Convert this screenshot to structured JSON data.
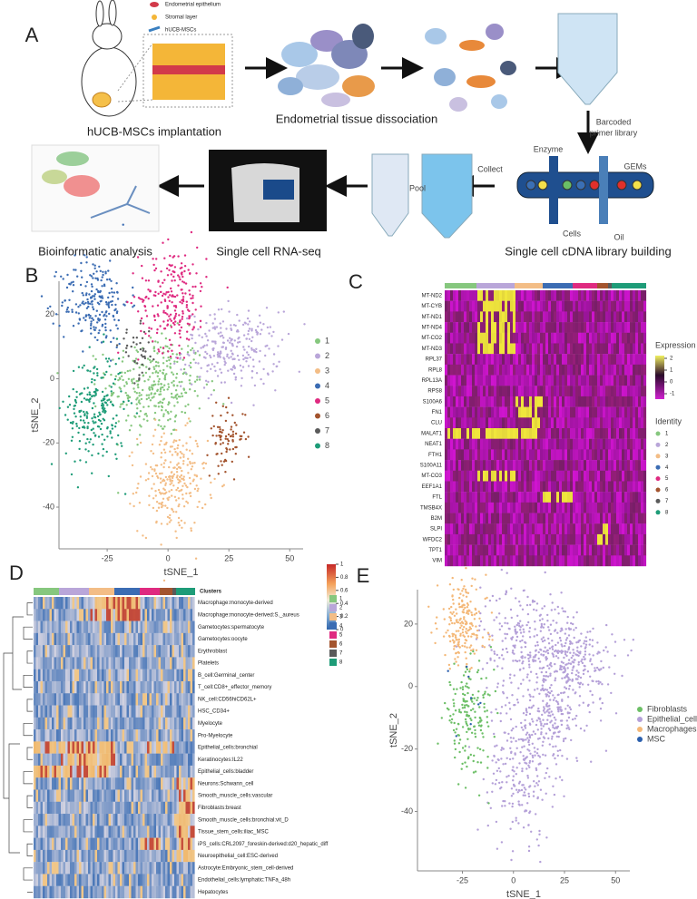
{
  "panel_labels": [
    "A",
    "B",
    "C",
    "D",
    "E"
  ],
  "panel_a": {
    "legend": [
      "Endometrial epithelium",
      "Stromal layer",
      "hUCB-MSCs"
    ],
    "implantation": "hUCB-MSCs implantation",
    "dissociation": "Endometrial tissue dissociation",
    "primer": [
      "Barcoded",
      "primer library"
    ],
    "enzyme": "Enzyme",
    "gems": "GEMs",
    "cells": "Cells",
    "oil": "Oil",
    "library": "Single cell cDNA library building",
    "collect": "Collect",
    "pool": "Pool",
    "rnaseq": "Single cell RNA-seq",
    "bioinfo": "Bioinformatic analysis"
  },
  "panel_b": {
    "type": "scatter",
    "xlabel": "tSNE_1",
    "ylabel": "tSNE_2",
    "xlim": [
      -44.8,
      55.5
    ],
    "ylim": [
      -53,
      30.4
    ],
    "xticks": [
      -25,
      0,
      25,
      50
    ],
    "yticks": [
      20,
      0,
      -20,
      -40
    ],
    "series": [
      {
        "name": "1",
        "color": "#86c77e"
      },
      {
        "name": "2",
        "color": "#b9a6d9"
      },
      {
        "name": "3",
        "color": "#f3bd86"
      },
      {
        "name": "4",
        "color": "#3b6cb3"
      },
      {
        "name": "5",
        "color": "#df2a80"
      },
      {
        "name": "6",
        "color": "#a3542e"
      },
      {
        "name": "7",
        "color": "#5a5a5a"
      },
      {
        "name": "8",
        "color": "#1e9c78"
      }
    ]
  },
  "panel_c": {
    "genes": [
      "MT-ND2",
      "MT-CYB",
      "MT-ND1",
      "MT-ND4",
      "MT-CO2",
      "MT-ND3",
      "RPL37",
      "RPL8",
      "RPL13A",
      "RPS8",
      "S100A6",
      "FN1",
      "CLU",
      "MALAT1",
      "NEAT1",
      "FTH1",
      "S100A11",
      "MT-CO3",
      "EEF1A1",
      "FTL",
      "TMSB4X",
      "B2M",
      "SLPI",
      "WFDC2",
      "TPT1",
      "VIM"
    ],
    "expression_title": "Expression",
    "expression_ticks": [
      2,
      1,
      0,
      -1
    ],
    "identity_title": "Identity"
  },
  "panel_d": {
    "clusters_title": "Clusters",
    "scale_ticks": [
      1,
      0.8,
      0.6,
      0.4,
      0.2,
      0
    ],
    "rows": [
      "Macrophage:monocyte-derived",
      "Macrophage:monocyte-derived:S._aureus",
      "Gametocytes:spermatocyte",
      "Gametocytes:oocyte",
      "Erythroblast",
      "Platelets",
      "B_cell:Germinal_center",
      "T_cell:CD8+_effector_memory",
      "NK_cell:CD56hiCD62L+",
      "HSC_CD34+",
      "Myelocyte",
      "Pro-Myelocyte",
      "Epithelial_cells:bronchial",
      "Keratinocytes:IL22",
      "Epithelial_cells:bladder",
      "Neurons:Schwann_cell",
      "Smooth_muscle_cells:vascular",
      "Fibroblasts:breast",
      "Smooth_muscle_cells:bronchial:vit_D",
      "Tissue_stem_cells:iliac_MSC",
      "iPS_cells:CRL2097_foreskin-derived:d20_hepatic_diff",
      "Neuroepithelial_cell:ESC-derived",
      "Astrocyte:Embryonic_stem_cell-derived",
      "Endothelial_cells:lymphatic:TNFa_48h",
      "Hepatocytes"
    ]
  },
  "panel_e": {
    "type": "scatter",
    "xlabel": "tSNE_1",
    "ylabel": "tSNE_2",
    "xlim": [
      -47,
      57
    ],
    "ylim": [
      -59,
      31
    ],
    "xticks": [
      -25,
      0,
      25,
      50
    ],
    "yticks": [
      20,
      0,
      -20,
      -40
    ],
    "series": [
      {
        "name": "Fibroblasts",
        "color": "#6cbf66"
      },
      {
        "name": "Epithelial_cells",
        "color": "#b4a0d8"
      },
      {
        "name": "Macrophages",
        "color": "#f4b878"
      },
      {
        "name": "MSC",
        "color": "#2b5fad"
      }
    ]
  }
}
